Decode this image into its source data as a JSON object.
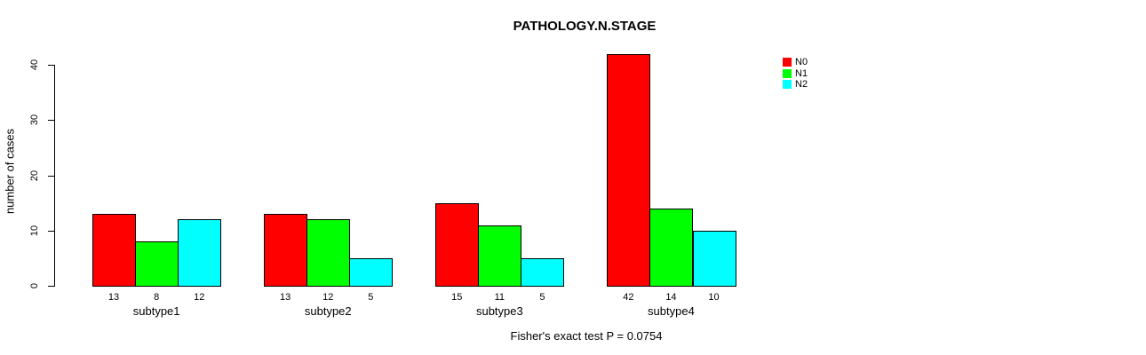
{
  "chart_data": {
    "type": "bar",
    "title": "PATHOLOGY.N.STAGE",
    "ylabel": "number of cases",
    "xlabel": "",
    "categories": [
      "subtype1",
      "subtype2",
      "subtype3",
      "subtype4"
    ],
    "series": [
      {
        "name": "N0",
        "color": "#ff0000",
        "values": [
          13,
          13,
          15,
          42
        ]
      },
      {
        "name": "N1",
        "color": "#00ff00",
        "values": [
          8,
          12,
          11,
          14
        ]
      },
      {
        "name": "N2",
        "color": "#00ffff",
        "values": [
          12,
          5,
          5,
          10
        ]
      }
    ],
    "bar_value_labels": [
      [
        "13",
        "8",
        "12"
      ],
      [
        "13",
        "12",
        "5"
      ],
      [
        "15",
        "11",
        "5"
      ],
      [
        "42",
        "14",
        "10"
      ]
    ],
    "yticks": [
      "0",
      "10",
      "20",
      "30",
      "40"
    ],
    "ylim": [
      0,
      40
    ],
    "grid": false,
    "legend_position": "top-right",
    "annotation": "Fisher's exact test P = 0.0754"
  }
}
